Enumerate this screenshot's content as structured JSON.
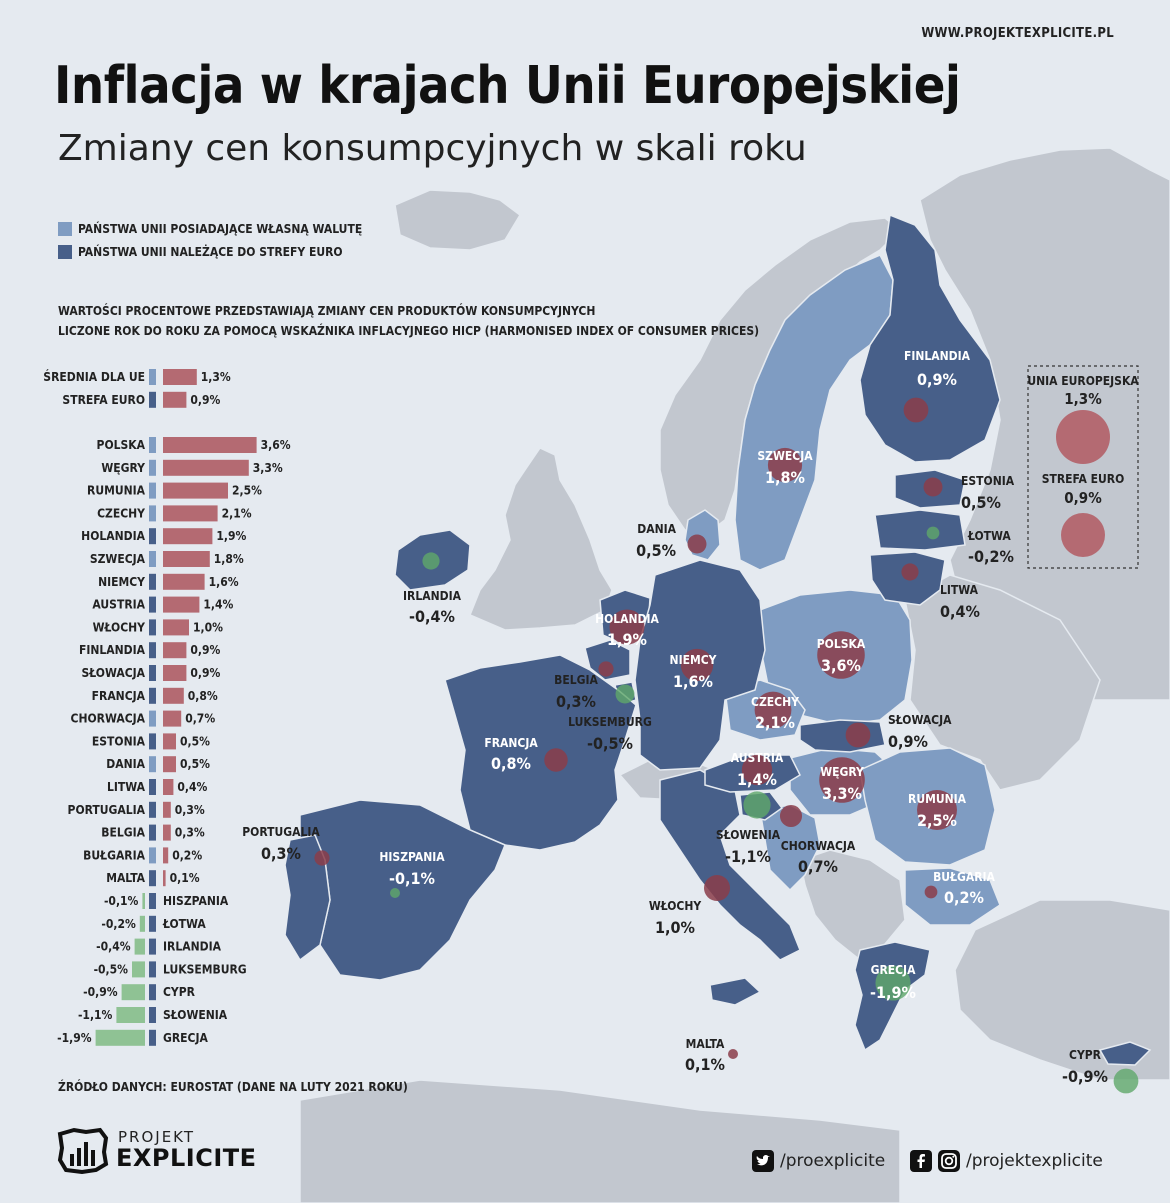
{
  "header": {
    "site": "WWW.PROJEKTEXPLICITE.PL",
    "title": "Inflacja w krajach Unii Europejskiej",
    "subtitle": "Zmiany cen konsumpcyjnych w skali roku"
  },
  "legend": {
    "own_currency": "PAŃSTWA UNII POSIADAJĄCE WŁASNĄ WALUTĘ",
    "euro_zone": "PAŃSTWA UNII NALEŻĄCE DO STREFY EURO",
    "own_color": "#7f9cc2",
    "euro_color": "#475f89"
  },
  "note": {
    "line1": "WARTOŚCI PROCENTOWE PRZEDSTAWIAJĄ ZMIANY CEN PRODUKTÓW KONSUMPCYJNYCH",
    "line2": "LICZONE ROK DO ROKU ZA POMOCĄ WSKAŹNIKA INFLACYJNEGO HICP (HARMONISED INDEX OF CONSUMER PRICES)"
  },
  "source": "ŹRÓDŁO DANYCH: EUROSTAT (DANE NA LUTY 2021 ROKU)",
  "colors": {
    "positive": "#b46a72",
    "negative": "#8fc294",
    "positive_bubble": "#8b3d4a",
    "negative_bubble": "#5fa86a",
    "non_eu": "#c2c7cf",
    "sea": "#e5eaf0"
  },
  "chart_data": {
    "type": "bar",
    "unit": "%",
    "averages": [
      {
        "name": "ŚREDNIA DLA UE",
        "label": "1,3%",
        "value": 1.3,
        "zone": "own"
      },
      {
        "name": "STREFA EURO",
        "label": "0,9%",
        "value": 0.9,
        "zone": "euro"
      }
    ],
    "countries": [
      {
        "name": "POLSKA",
        "label": "3,6%",
        "value": 3.6,
        "zone": "own"
      },
      {
        "name": "WĘGRY",
        "label": "3,3%",
        "value": 3.3,
        "zone": "own"
      },
      {
        "name": "RUMUNIA",
        "label": "2,5%",
        "value": 2.5,
        "zone": "own"
      },
      {
        "name": "CZECHY",
        "label": "2,1%",
        "value": 2.1,
        "zone": "own"
      },
      {
        "name": "HOLANDIA",
        "label": "1,9%",
        "value": 1.9,
        "zone": "euro"
      },
      {
        "name": "SZWECJA",
        "label": "1,8%",
        "value": 1.8,
        "zone": "own"
      },
      {
        "name": "NIEMCY",
        "label": "1,6%",
        "value": 1.6,
        "zone": "euro"
      },
      {
        "name": "AUSTRIA",
        "label": "1,4%",
        "value": 1.4,
        "zone": "euro"
      },
      {
        "name": "WŁOCHY",
        "label": "1,0%",
        "value": 1.0,
        "zone": "euro"
      },
      {
        "name": "FINLANDIA",
        "label": "0,9%",
        "value": 0.9,
        "zone": "euro"
      },
      {
        "name": "SŁOWACJA",
        "label": "0,9%",
        "value": 0.9,
        "zone": "euro"
      },
      {
        "name": "FRANCJA",
        "label": "0,8%",
        "value": 0.8,
        "zone": "euro"
      },
      {
        "name": "CHORWACJA",
        "label": "0,7%",
        "value": 0.7,
        "zone": "own"
      },
      {
        "name": "ESTONIA",
        "label": "0,5%",
        "value": 0.5,
        "zone": "euro"
      },
      {
        "name": "DANIA",
        "label": "0,5%",
        "value": 0.5,
        "zone": "own"
      },
      {
        "name": "LITWA",
        "label": "0,4%",
        "value": 0.4,
        "zone": "euro"
      },
      {
        "name": "PORTUGALIA",
        "label": "0,3%",
        "value": 0.3,
        "zone": "euro"
      },
      {
        "name": "BELGIA",
        "label": "0,3%",
        "value": 0.3,
        "zone": "euro"
      },
      {
        "name": "BUŁGARIA",
        "label": "0,2%",
        "value": 0.2,
        "zone": "own"
      },
      {
        "name": "MALTA",
        "label": "0,1%",
        "value": 0.1,
        "zone": "euro"
      },
      {
        "name": "HISZPANIA",
        "label": "-0,1%",
        "value": -0.1,
        "zone": "euro"
      },
      {
        "name": "ŁOTWA",
        "label": "-0,2%",
        "value": -0.2,
        "zone": "euro"
      },
      {
        "name": "IRLANDIA",
        "label": "-0,4%",
        "value": -0.4,
        "zone": "euro"
      },
      {
        "name": "LUKSEMBURG",
        "label": "-0,5%",
        "value": -0.5,
        "zone": "euro"
      },
      {
        "name": "CYPR",
        "label": "-0,9%",
        "value": -0.9,
        "zone": "euro"
      },
      {
        "name": "SŁOWENIA",
        "label": "-1,1%",
        "value": -1.1,
        "zone": "euro"
      },
      {
        "name": "GRECJA",
        "label": "-1,9%",
        "value": -1.9,
        "zone": "euro"
      }
    ]
  },
  "map_labels": [
    {
      "name": "FINLANDIA",
      "value": "0,9%"
    },
    {
      "name": "SZWECJA",
      "value": "1,8%"
    },
    {
      "name": "ESTONIA",
      "value": "0,5%"
    },
    {
      "name": "ŁOTWA",
      "value": "-0,2%"
    },
    {
      "name": "LITWA",
      "value": "0,4%"
    },
    {
      "name": "DANIA",
      "value": "0,5%"
    },
    {
      "name": "IRLANDIA",
      "value": "-0,4%"
    },
    {
      "name": "HOLANDIA",
      "value": "1,9%"
    },
    {
      "name": "NIEMCY",
      "value": "1,6%"
    },
    {
      "name": "POLSKA",
      "value": "3,6%"
    },
    {
      "name": "BELGIA",
      "value": "0,3%"
    },
    {
      "name": "LUKSEMBURG",
      "value": "-0,5%"
    },
    {
      "name": "CZECHY",
      "value": "2,1%"
    },
    {
      "name": "SŁOWACJA",
      "value": "0,9%"
    },
    {
      "name": "FRANCJA",
      "value": "0,8%"
    },
    {
      "name": "AUSTRIA",
      "value": "1,4%"
    },
    {
      "name": "WĘGRY",
      "value": "3,3%"
    },
    {
      "name": "RUMUNIA",
      "value": "2,5%"
    },
    {
      "name": "SŁOWENIA",
      "value": "-1,1%"
    },
    {
      "name": "CHORWACJA",
      "value": "0,7%"
    },
    {
      "name": "PORTUGALIA",
      "value": "0,3%"
    },
    {
      "name": "HISZPANIA",
      "value": "-0,1%"
    },
    {
      "name": "BUŁGARIA",
      "value": "0,2%"
    },
    {
      "name": "WŁOCHY",
      "value": "1,0%"
    },
    {
      "name": "GRECJA",
      "value": "-1,9%"
    },
    {
      "name": "MALTA",
      "value": "0,1%"
    },
    {
      "name": "CYPR",
      "value": "-0,9%"
    }
  ],
  "summary_box": {
    "eu_label": "UNIA EUROPEJSKA",
    "eu_value": "1,3%",
    "euro_label": "STREFA EURO",
    "euro_value": "0,9%"
  },
  "footer": {
    "logo_top": "PROJEKT",
    "logo_bottom": "EXPLICITE",
    "twitter": "/proexplicite",
    "facebook_instagram": "/projektexplicite"
  }
}
